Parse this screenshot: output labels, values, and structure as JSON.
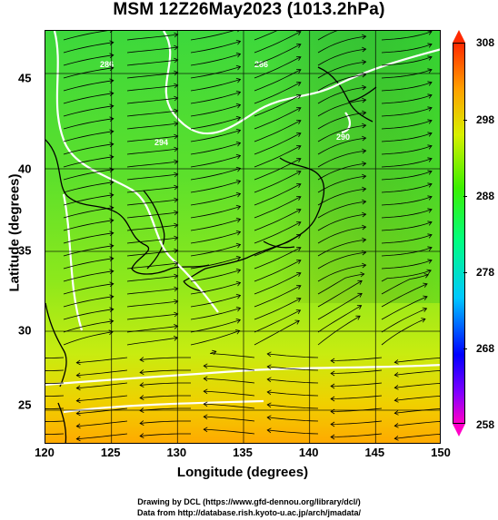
{
  "title": "MSM 12Z26May2023 (1013.2hPa)",
  "axes": {
    "xlabel": "Longitude (degrees)",
    "ylabel": "Latitude  (degrees)",
    "xticks": [
      "120",
      "125",
      "130",
      "135",
      "140",
      "145",
      "150"
    ],
    "yticks": [
      "45",
      "40",
      "35",
      "30",
      "25"
    ],
    "xlim": [
      120,
      150
    ],
    "ylim": [
      22.4,
      47.6
    ]
  },
  "colorbar": {
    "ticks": [
      "308",
      "298",
      "288",
      "278",
      "268",
      "258"
    ],
    "range": [
      258,
      308
    ]
  },
  "credits": {
    "line1": "Drawing by DCL (https://www.gfd-dennou.org/library/dcl/)",
    "line2": "Data from http://database.rish.kyoto-u.ac.jp/arch/jmadata/"
  },
  "contour_labels": [
    "294",
    "290",
    "286",
    "286"
  ],
  "colors": {
    "land_outline": "#000000",
    "contour": "#ffffff",
    "streamline": "#000000"
  }
}
